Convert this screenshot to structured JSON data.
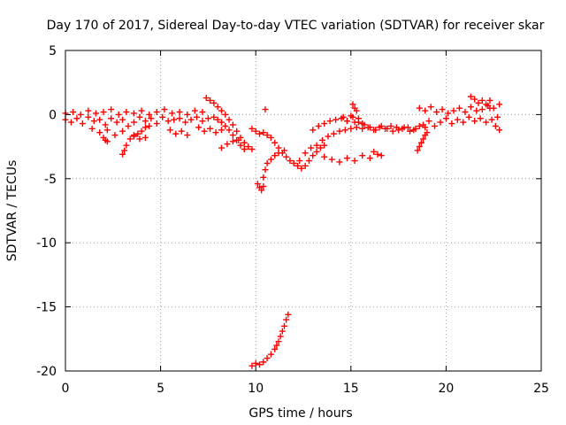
{
  "chart_data": {
    "type": "scatter",
    "title": "Day 170 of 2017, Sidereal Day-to-day VTEC variation (SDTVAR) for receiver skar",
    "xlabel": "GPS time / hours",
    "ylabel": "SDTVAR / TECUs",
    "xlim": [
      0,
      25
    ],
    "ylim": [
      -20,
      5
    ],
    "xticks": [
      0,
      5,
      10,
      15,
      20,
      25
    ],
    "yticks": [
      -20,
      -15,
      -10,
      -5,
      0,
      5
    ],
    "grid": true,
    "marker": "+",
    "series_color": "#ff0000",
    "series": [
      {
        "name": "SDTVAR",
        "segments": [
          {
            "x": [
              0.0,
              0.3,
              0.6,
              0.9,
              1.2,
              1.5,
              1.8,
              2.1,
              2.4,
              2.7,
              3.0,
              3.3,
              3.6,
              3.9,
              4.2,
              4.5,
              4.8,
              5.1,
              5.4,
              5.7,
              6.0,
              6.3,
              6.6,
              6.9,
              7.2,
              7.5
            ],
            "y": [
              -0.4,
              -0.6,
              -0.3,
              -0.7,
              -0.2,
              -0.5,
              -0.4,
              -0.8,
              -0.3,
              -0.6,
              -0.4,
              -0.9,
              -0.6,
              -0.2,
              -0.5,
              -0.3,
              -0.7,
              -0.2,
              -0.5,
              -0.4,
              -0.3,
              -0.6,
              -0.4,
              -0.2,
              -0.5,
              -0.3
            ]
          },
          {
            "x": [
              0.0,
              0.4,
              0.8,
              1.2,
              1.6,
              2.0,
              2.4,
              2.8,
              3.2,
              3.6,
              4.0,
              4.4,
              4.8,
              5.2,
              5.6,
              6.0,
              6.4,
              6.8,
              7.2
            ],
            "y": [
              0.1,
              0.2,
              0.0,
              0.3,
              0.1,
              0.2,
              0.4,
              0.0,
              0.2,
              0.1,
              0.3,
              0.0,
              0.2,
              0.4,
              0.1,
              0.2,
              0.0,
              0.3,
              0.2
            ]
          },
          {
            "x": [
              1.4,
              1.8,
              2.2,
              2.6,
              3.0
            ],
            "y": [
              -1.1,
              -1.4,
              -1.2,
              -1.6,
              -1.3
            ]
          },
          {
            "x": [
              2.0,
              2.1,
              2.2
            ],
            "y": [
              -1.8,
              -2.0,
              -2.1
            ]
          },
          {
            "x": [
              3.0,
              3.1,
              3.2,
              3.4,
              3.6,
              3.8,
              4.0,
              4.2,
              4.4
            ],
            "y": [
              -3.1,
              -2.8,
              -2.4,
              -1.9,
              -1.6,
              -1.5,
              -1.3,
              -1.0,
              -0.9
            ]
          },
          {
            "x": [
              3.6,
              3.9,
              4.2
            ],
            "y": [
              -1.7,
              -1.9,
              -1.8
            ]
          },
          {
            "x": [
              5.5,
              5.8,
              6.1,
              6.4
            ],
            "y": [
              -1.2,
              -1.5,
              -1.3,
              -1.6
            ]
          },
          {
            "x": [
              7.0,
              7.3,
              7.6,
              7.9,
              8.2
            ],
            "y": [
              -1.0,
              -1.3,
              -1.1,
              -1.4,
              -1.2
            ]
          },
          {
            "x": [
              7.4,
              7.6,
              7.8,
              8.0,
              8.2,
              8.4,
              8.6,
              8.8,
              9.0,
              9.2,
              9.4,
              9.6,
              9.8
            ],
            "y": [
              1.3,
              1.1,
              0.9,
              0.6,
              0.3,
              0.0,
              -0.4,
              -0.8,
              -1.3,
              -1.8,
              -2.2,
              -2.5,
              -2.7
            ]
          },
          {
            "x": [
              7.8,
              8.0,
              8.2,
              8.4,
              8.6,
              8.8,
              9.0,
              9.2,
              9.4
            ],
            "y": [
              -0.2,
              -0.4,
              -0.6,
              -0.9,
              -1.2,
              -1.6,
              -2.0,
              -2.4,
              -2.7
            ]
          },
          {
            "x": [
              8.2,
              8.5,
              8.8,
              9.1
            ],
            "y": [
              -2.6,
              -2.3,
              -2.1,
              -2.0
            ]
          },
          {
            "x": [
              9.8,
              10.0,
              10.2,
              10.4,
              10.6,
              10.8,
              11.0,
              11.2,
              11.4,
              11.6,
              11.8,
              12.0,
              12.2,
              12.4,
              12.6,
              12.8,
              13.0,
              13.2,
              13.4,
              13.6
            ],
            "y": [
              -1.1,
              -1.3,
              -1.5,
              -1.4,
              -1.6,
              -1.8,
              -2.2,
              -2.6,
              -3.0,
              -3.3,
              -3.6,
              -3.8,
              -4.0,
              -4.2,
              -4.0,
              -3.6,
              -3.2,
              -2.9,
              -2.6,
              -2.4
            ]
          },
          {
            "x": [
              10.1,
              10.2,
              10.3,
              10.4
            ],
            "y": [
              -5.4,
              -5.7,
              -5.9,
              -5.6
            ]
          },
          {
            "x": [
              10.4,
              10.5,
              10.6,
              10.8,
              11.0,
              11.2,
              11.5
            ],
            "y": [
              -4.9,
              -4.3,
              -3.8,
              -3.5,
              -3.2,
              -3.0,
              -2.8
            ]
          },
          {
            "x": [
              10.5
            ],
            "y": [
              0.4
            ]
          },
          {
            "x": [
              12.3,
              12.6,
              12.9,
              13.2,
              13.5,
              13.8,
              14.1,
              14.4,
              14.7,
              15.0,
              15.3,
              15.6,
              15.9,
              16.2,
              16.5,
              16.8,
              17.1,
              17.4,
              17.7,
              18.0,
              18.3,
              18.6,
              18.9
            ],
            "y": [
              -3.6,
              -3.0,
              -2.6,
              -2.4,
              -2.0,
              -1.7,
              -1.5,
              -1.3,
              -1.2,
              -1.1,
              -1.0,
              -1.1,
              -1.0,
              -1.2,
              -1.0,
              -1.1,
              -0.9,
              -1.0,
              -1.1,
              -1.0,
              -1.2,
              -0.9,
              -1.0
            ]
          },
          {
            "x": [
              13.0,
              13.3,
              13.6,
              13.9,
              14.2,
              14.5,
              14.8,
              15.1,
              15.4,
              15.7,
              16.0,
              16.3,
              16.6,
              16.9,
              17.2,
              17.5,
              17.8,
              18.1,
              18.4
            ],
            "y": [
              -1.2,
              -0.9,
              -0.7,
              -0.5,
              -0.4,
              -0.3,
              -0.5,
              -0.2,
              -0.6,
              -0.8,
              -1.0,
              -1.2,
              -0.9,
              -1.1,
              -1.3,
              -1.2,
              -1.0,
              -1.3,
              -1.1
            ]
          },
          {
            "x": [
              13.6,
              14.0,
              14.4,
              14.8,
              15.2,
              15.6,
              16.0
            ],
            "y": [
              -3.3,
              -3.5,
              -3.7,
              -3.4,
              -3.6,
              -3.2,
              -3.4
            ]
          },
          {
            "x": [
              14.6,
              14.8,
              15.0,
              15.2,
              15.4,
              15.6
            ],
            "y": [
              -0.2,
              -0.5,
              -0.1,
              -0.6,
              -0.3,
              -0.7
            ]
          },
          {
            "x": [
              15.1,
              15.2,
              15.3
            ],
            "y": [
              0.8,
              0.5,
              0.3
            ]
          },
          {
            "x": [
              16.2,
              16.4,
              16.6
            ],
            "y": [
              -2.9,
              -3.1,
              -3.2
            ]
          },
          {
            "x": [
              18.5,
              18.6,
              18.7,
              18.8,
              18.9,
              19.0
            ],
            "y": [
              -2.8,
              -2.5,
              -2.2,
              -1.9,
              -1.6,
              -1.4
            ]
          },
          {
            "x": [
              18.8,
              19.1,
              19.4,
              19.7,
              20.0,
              20.3,
              20.6,
              20.9,
              21.2,
              21.5,
              21.8,
              22.1,
              22.4,
              22.7
            ],
            "y": [
              -0.8,
              -0.5,
              -0.9,
              -0.6,
              -0.3,
              -0.7,
              -0.4,
              -0.6,
              -0.2,
              -0.5,
              -0.3,
              -0.6,
              -0.4,
              -0.2
            ]
          },
          {
            "x": [
              18.6,
              18.9,
              19.2,
              19.5,
              19.8,
              20.1,
              20.4,
              20.7,
              21.0,
              21.3,
              21.6,
              21.9,
              22.2,
              22.5,
              22.8
            ],
            "y": [
              0.5,
              0.3,
              0.6,
              0.2,
              0.4,
              0.1,
              0.3,
              0.5,
              0.2,
              0.6,
              0.3,
              0.4,
              0.7,
              0.5,
              0.8
            ]
          },
          {
            "x": [
              21.3,
              21.5,
              21.7,
              22.3,
              22.6,
              22.8
            ],
            "y": [
              1.4,
              1.2,
              0.9,
              1.1,
              -0.9,
              -1.2
            ]
          },
          {
            "x": [
              21.9,
              22.1,
              22.3
            ],
            "y": [
              1.1,
              0.8,
              0.5
            ]
          },
          {
            "x": [
              9.8,
              10.0,
              10.2,
              10.4,
              10.6,
              10.8,
              11.0,
              11.1,
              11.2,
              11.3,
              11.4,
              11.5,
              11.6,
              11.7
            ],
            "y": [
              -19.6,
              -19.4,
              -19.5,
              -19.3,
              -19.0,
              -18.7,
              -18.3,
              -18.0,
              -17.7,
              -17.3,
              -16.9,
              -16.5,
              -16.0,
              -15.6
            ]
          }
        ]
      }
    ]
  }
}
